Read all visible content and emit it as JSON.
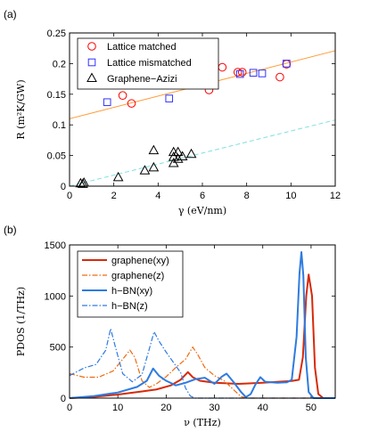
{
  "chart_data": [
    {
      "type": "scatter",
      "panel_label": "(a)",
      "xlabel": "γ (eV/nm)",
      "ylabel": "R (m²K/GW)",
      "xlim": [
        0,
        12
      ],
      "ylim": [
        0,
        0.25
      ],
      "xticks": [
        0,
        2,
        4,
        6,
        8,
        10,
        12
      ],
      "yticks": [
        0,
        0.05,
        0.1,
        0.15,
        0.2,
        0.25
      ],
      "ytick_labels": [
        "0",
        "0.05",
        "0.1",
        "0.15",
        "0.2",
        "0.25"
      ],
      "grid": false,
      "legend_position": "top-left",
      "series": [
        {
          "name": "Lattice matched",
          "marker": "circle",
          "color": "#ff0000",
          "points": [
            [
              2.4,
              0.148
            ],
            [
              2.8,
              0.135
            ],
            [
              6.3,
              0.157
            ],
            [
              6.9,
              0.194
            ],
            [
              7.6,
              0.186
            ],
            [
              7.8,
              0.186
            ],
            [
              9.5,
              0.178
            ],
            [
              9.8,
              0.199
            ]
          ]
        },
        {
          "name": "Lattice mismatched",
          "marker": "square",
          "color": "#3333ff",
          "points": [
            [
              1.7,
              0.137
            ],
            [
              4.5,
              0.143
            ],
            [
              7.7,
              0.183
            ],
            [
              8.3,
              0.185
            ],
            [
              8.7,
              0.184
            ],
            [
              9.8,
              0.2
            ]
          ]
        },
        {
          "name": "Graphene−Azizi",
          "marker": "triangle",
          "color": "#000000",
          "points": [
            [
              0.5,
              0.004
            ],
            [
              0.6,
              0.003
            ],
            [
              0.65,
              0.005
            ],
            [
              2.2,
              0.014
            ],
            [
              3.4,
              0.025
            ],
            [
              3.8,
              0.03
            ],
            [
              3.8,
              0.058
            ],
            [
              4.7,
              0.037
            ],
            [
              4.7,
              0.047
            ],
            [
              4.7,
              0.055
            ],
            [
              4.9,
              0.055
            ],
            [
              4.9,
              0.044
            ],
            [
              5.1,
              0.048
            ],
            [
              5.5,
              0.052
            ]
          ]
        }
      ],
      "fit_lines": [
        {
          "color": "#ff9933",
          "style": "solid",
          "x": [
            0,
            12
          ],
          "y": [
            0.11,
            0.221
          ]
        },
        {
          "color": "#7fe0e0",
          "style": "dashed",
          "x": [
            0,
            12
          ],
          "y": [
            0.0,
            0.108
          ]
        }
      ]
    },
    {
      "type": "line",
      "panel_label": "(b)",
      "xlabel": "ν (THz)",
      "ylabel": "PDOS (1/THz)",
      "xlim": [
        0,
        55
      ],
      "ylim": [
        0,
        1500
      ],
      "xticks": [
        0,
        10,
        20,
        30,
        40,
        50
      ],
      "yticks": [
        0,
        500,
        1000,
        1500
      ],
      "grid": false,
      "legend_position": "top-left",
      "series": [
        {
          "name": "graphene(xy)",
          "color": "#d62a0a",
          "style": "solid",
          "points": [
            [
              0,
              0
            ],
            [
              5,
              12
            ],
            [
              10,
              35
            ],
            [
              15,
              65
            ],
            [
              18,
              85
            ],
            [
              21,
              125
            ],
            [
              23,
              180
            ],
            [
              24.5,
              255
            ],
            [
              25.5,
              205
            ],
            [
              27,
              170
            ],
            [
              30,
              150
            ],
            [
              35,
              140
            ],
            [
              40,
              150
            ],
            [
              44,
              162
            ],
            [
              46,
              168
            ],
            [
              47.5,
              180
            ],
            [
              48.3,
              400
            ],
            [
              49,
              1000
            ],
            [
              49.5,
              1210
            ],
            [
              50.2,
              1000
            ],
            [
              50.8,
              300
            ],
            [
              51.5,
              40
            ],
            [
              52.5,
              0
            ],
            [
              55,
              0
            ]
          ]
        },
        {
          "name": "graphene(z)",
          "color": "#ee6a10",
          "style": "dashdot",
          "points": [
            [
              0,
              240
            ],
            [
              3,
              205
            ],
            [
              6,
              205
            ],
            [
              9,
              265
            ],
            [
              11,
              380
            ],
            [
              12.5,
              470
            ],
            [
              13.5,
              400
            ],
            [
              15,
              170
            ],
            [
              16.5,
              105
            ],
            [
              18,
              140
            ],
            [
              20,
              210
            ],
            [
              22,
              300
            ],
            [
              24,
              380
            ],
            [
              25.5,
              500
            ],
            [
              26.5,
              430
            ],
            [
              28,
              300
            ],
            [
              30,
              220
            ],
            [
              32,
              170
            ],
            [
              34,
              80
            ],
            [
              35.5,
              15
            ],
            [
              37,
              0
            ],
            [
              55,
              0
            ]
          ]
        },
        {
          "name": "h−BN(xy)",
          "color": "#2e7be0",
          "style": "solid",
          "points": [
            [
              0,
              0
            ],
            [
              5,
              20
            ],
            [
              10,
              55
            ],
            [
              14,
              110
            ],
            [
              16,
              170
            ],
            [
              17.3,
              290
            ],
            [
              18.5,
              220
            ],
            [
              20,
              170
            ],
            [
              22,
              125
            ],
            [
              24,
              150
            ],
            [
              26,
              185
            ],
            [
              28,
              200
            ],
            [
              30,
              140
            ],
            [
              31.5,
              210
            ],
            [
              32.5,
              240
            ],
            [
              34,
              155
            ],
            [
              35.5,
              60
            ],
            [
              36.5,
              10
            ],
            [
              37.5,
              40
            ],
            [
              38.5,
              135
            ],
            [
              39.5,
              205
            ],
            [
              40.5,
              160
            ],
            [
              43,
              150
            ],
            [
              45,
              155
            ],
            [
              46,
              180
            ],
            [
              47,
              600
            ],
            [
              47.6,
              1220
            ],
            [
              48,
              1430
            ],
            [
              48.4,
              1200
            ],
            [
              48.9,
              400
            ],
            [
              49.5,
              60
            ],
            [
              50.5,
              0
            ],
            [
              55,
              0
            ]
          ]
        },
        {
          "name": "h−BN(z)",
          "color": "#2e7be0",
          "style": "dashdot",
          "points": [
            [
              0,
              220
            ],
            [
              3,
              295
            ],
            [
              5.5,
              330
            ],
            [
              7.5,
              470
            ],
            [
              8.5,
              680
            ],
            [
              9.5,
              500
            ],
            [
              11,
              240
            ],
            [
              13,
              160
            ],
            [
              15,
              230
            ],
            [
              16.5,
              480
            ],
            [
              17.5,
              650
            ],
            [
              18.5,
              560
            ],
            [
              20,
              450
            ],
            [
              21.5,
              350
            ],
            [
              23,
              250
            ],
            [
              24,
              100
            ],
            [
              25,
              20
            ],
            [
              26,
              0
            ],
            [
              55,
              0
            ]
          ]
        }
      ]
    }
  ]
}
